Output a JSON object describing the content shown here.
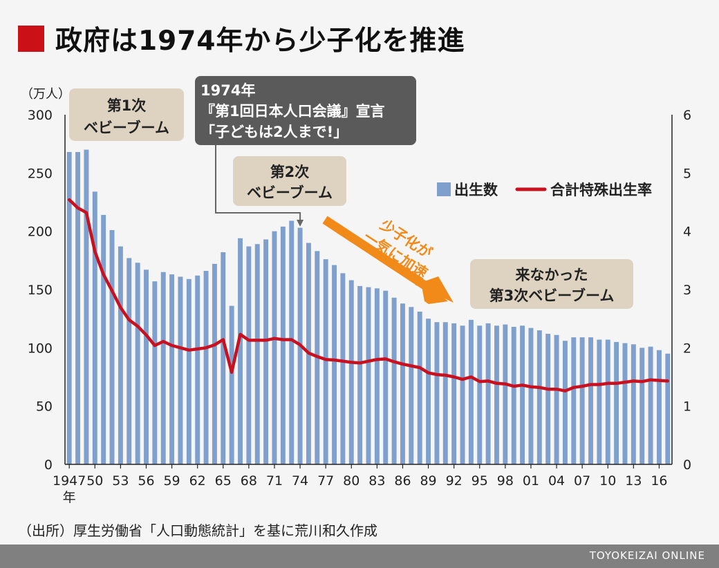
{
  "title": "政府は1974年から少子化を推進",
  "source": "（出所）厚生労働省「人口動態統計」を基に荒川和久作成",
  "brand": "TOYOKEIZAI ONLINE",
  "colors": {
    "accent": "#cc1018",
    "bar": "#7f9fcd",
    "line": "#c8101e",
    "arrow": "#f28a1a",
    "callout_dark": "#5a5a5a",
    "callout_light": "#ddd3c0"
  },
  "chart_data": {
    "type": "bar",
    "x": [
      1947,
      1948,
      1949,
      1950,
      1951,
      1952,
      1953,
      1954,
      1955,
      1956,
      1957,
      1958,
      1959,
      1960,
      1961,
      1962,
      1963,
      1964,
      1965,
      1966,
      1967,
      1968,
      1969,
      1970,
      1971,
      1972,
      1973,
      1974,
      1975,
      1976,
      1977,
      1978,
      1979,
      1980,
      1981,
      1982,
      1983,
      1984,
      1985,
      1986,
      1987,
      1988,
      1989,
      1990,
      1991,
      1992,
      1993,
      1994,
      1995,
      1996,
      1997,
      1998,
      1999,
      2000,
      2001,
      2002,
      2003,
      2004,
      2005,
      2006,
      2007,
      2008,
      2009,
      2010,
      2011,
      2012,
      2013,
      2014,
      2015,
      2016,
      2017
    ],
    "series": [
      {
        "name": "出生数",
        "axis": "left",
        "values": [
          268,
          268,
          270,
          234,
          214,
          201,
          187,
          177,
          173,
          167,
          157,
          165,
          163,
          161,
          159,
          162,
          166,
          172,
          182,
          136,
          194,
          187,
          189,
          193,
          200,
          204,
          209,
          203,
          190,
          183,
          176,
          171,
          164,
          158,
          153,
          152,
          151,
          149,
          143,
          138,
          135,
          131,
          125,
          122,
          122,
          121,
          119,
          124,
          119,
          121,
          119,
          120,
          118,
          119,
          117,
          115,
          112,
          111,
          106,
          109,
          109,
          109,
          107,
          107,
          105,
          104,
          103,
          100,
          101,
          98,
          95
        ]
      },
      {
        "name": "合計特殊出生率",
        "axis": "right",
        "values": [
          4.54,
          4.4,
          4.32,
          3.65,
          3.26,
          2.98,
          2.69,
          2.48,
          2.37,
          2.22,
          2.04,
          2.11,
          2.04,
          2.0,
          1.96,
          1.98,
          2.0,
          2.05,
          2.14,
          1.58,
          2.23,
          2.13,
          2.13,
          2.13,
          2.16,
          2.14,
          2.14,
          2.05,
          1.91,
          1.85,
          1.8,
          1.79,
          1.77,
          1.75,
          1.74,
          1.77,
          1.8,
          1.81,
          1.76,
          1.72,
          1.69,
          1.66,
          1.57,
          1.54,
          1.53,
          1.5,
          1.46,
          1.5,
          1.42,
          1.43,
          1.39,
          1.38,
          1.34,
          1.36,
          1.33,
          1.32,
          1.29,
          1.29,
          1.26,
          1.32,
          1.34,
          1.37,
          1.37,
          1.39,
          1.39,
          1.41,
          1.43,
          1.42,
          1.45,
          1.44,
          1.43
        ]
      }
    ],
    "y_left": {
      "unit_label": "（万人）",
      "range": [
        0,
        300
      ],
      "ticks": [
        0,
        50,
        100,
        150,
        200,
        250,
        300
      ]
    },
    "y_right": {
      "range": [
        0,
        6
      ],
      "ticks": [
        0,
        1,
        2,
        3,
        4,
        5,
        6
      ]
    },
    "x_tick_labels": [
      "1947",
      "50",
      "53",
      "56",
      "59",
      "62",
      "65",
      "68",
      "71",
      "74",
      "77",
      "80",
      "83",
      "86",
      "89",
      "92",
      "95",
      "98",
      "01",
      "04",
      "07",
      "10",
      "13",
      "16"
    ],
    "x_year_label": "年",
    "legend": "top-right",
    "annotations": {
      "boom1": [
        "第1次",
        "ベビーブーム"
      ],
      "decl1974": [
        "1974年",
        "『第1回日本人口会議』宣言",
        "「子どもは2人まで!」"
      ],
      "boom2": [
        "第2次",
        "ベビーブーム"
      ],
      "arrow_text": [
        "少子化が",
        "一気に加速"
      ],
      "boom3": [
        "来なかった",
        "第3次ベビーブーム"
      ]
    }
  }
}
